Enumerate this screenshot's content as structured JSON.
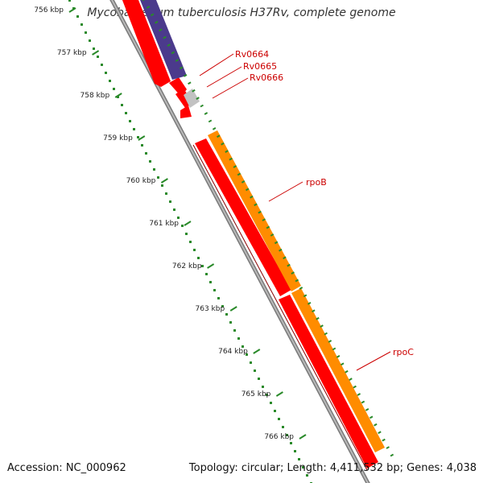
{
  "title": "Mycobacterium tuberculosis H37Rv, complete genome",
  "footer": {
    "accession": "Accession: NC_000962",
    "summary": "Topology: circular; Length: 4,411,532 bp; Genes: 4,038"
  },
  "ticks": [
    "756 kbp",
    "757 kbp",
    "758 kbp",
    "759 kbp",
    "760 kbp",
    "761 kbp",
    "762 kbp",
    "763 kbp",
    "764 kbp",
    "765 kbp",
    "766 kbp"
  ],
  "gene_labels": [
    "Rv0664",
    "Rv0665",
    "Rv0666",
    "rpoB",
    "rpoC"
  ],
  "colors": {
    "backbone": "#8c8c8c",
    "cds": "#ff0000",
    "gene": "#ff8c00",
    "trna_like": "#4b3a8c",
    "misc": "#c0c0c0",
    "ticks": "#2a8a2a",
    "label": "#cc0000"
  }
}
